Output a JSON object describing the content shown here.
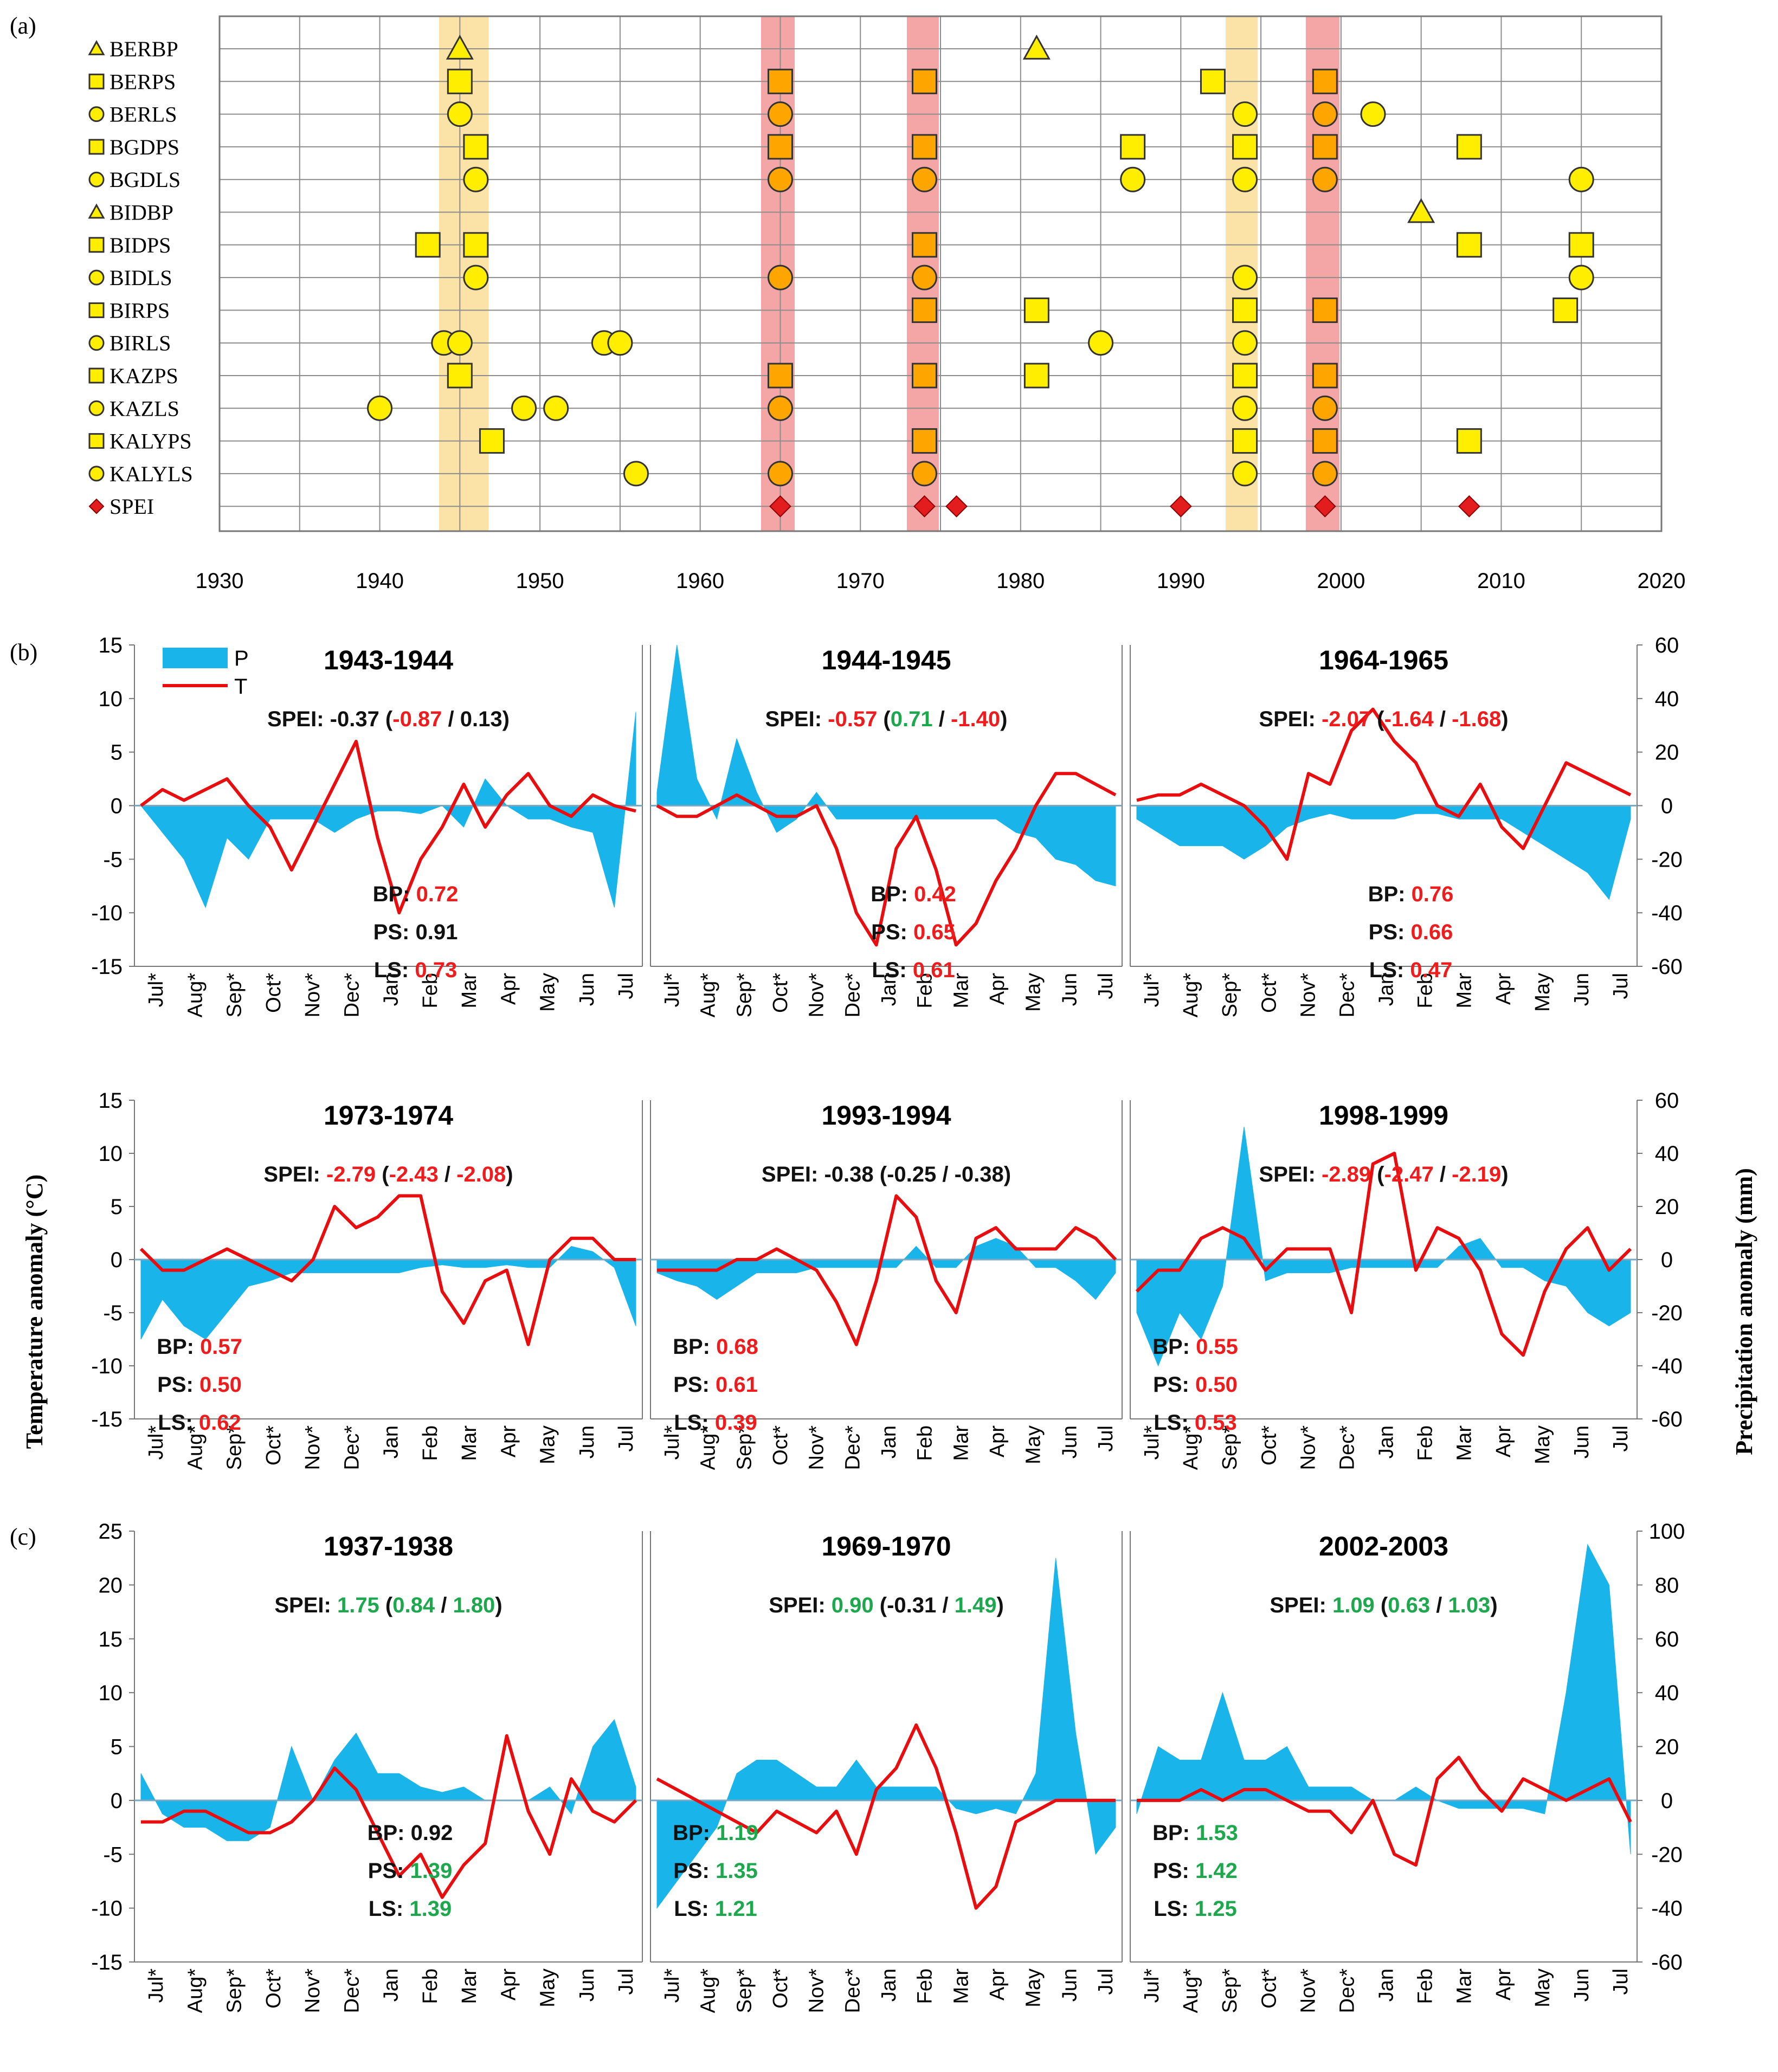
{
  "colors": {
    "precip": "#18b4ea",
    "temp": "#e80e10",
    "red": "#ee1c1c",
    "green": "#1ea84e",
    "black": "#111111",
    "yellow": "#ffee00",
    "orange": "#ffa500",
    "band_red": "#f4a6a6",
    "band_yellow": "#fbe3a8",
    "spei_marker": "#e31d1d"
  },
  "chart_data": [
    {
      "type": "scatter",
      "panel": "(a)",
      "x_ticks": [
        "1930",
        "1940",
        "1950",
        "1960",
        "1970",
        "1980",
        "1990",
        "2000",
        "2010",
        "2020"
      ],
      "xlim": [
        1930,
        2020
      ],
      "bands": [
        {
          "from": 1943.7,
          "to": 1946.8,
          "color": "yellow"
        },
        {
          "from": 1963.8,
          "to": 1965.9,
          "color": "red"
        },
        {
          "from": 1972.9,
          "to": 1974.9,
          "color": "red"
        },
        {
          "from": 1992.8,
          "to": 1994.8,
          "color": "yellow"
        },
        {
          "from": 1997.8,
          "to": 1999.9,
          "color": "red"
        }
      ],
      "highlight_years": [
        1965,
        1974,
        1999
      ],
      "rows": [
        {
          "label": "BERBP",
          "shape": "triangle",
          "years": [
            1945,
            1981
          ]
        },
        {
          "label": "BERPS",
          "shape": "square",
          "years": [
            1945,
            1965,
            1974,
            1992,
            1999
          ]
        },
        {
          "label": "BERLS",
          "shape": "circle",
          "years": [
            1945,
            1965,
            1994,
            1999,
            2002
          ]
        },
        {
          "label": "BGDPS",
          "shape": "square",
          "years": [
            1946,
            1965,
            1974,
            1987,
            1994,
            1999,
            2008
          ]
        },
        {
          "label": "BGDLS",
          "shape": "circle",
          "years": [
            1946,
            1965,
            1974,
            1987,
            1994,
            1999,
            2015
          ]
        },
        {
          "label": "BIDBP",
          "shape": "triangle",
          "years": [
            2005
          ]
        },
        {
          "label": "BIDPS",
          "shape": "square",
          "years": [
            1943,
            1946,
            1974,
            2008,
            2015
          ]
        },
        {
          "label": "BIDLS",
          "shape": "circle",
          "years": [
            1946,
            1965,
            1974,
            1994,
            2015
          ]
        },
        {
          "label": "BIRPS",
          "shape": "square",
          "years": [
            1974,
            1981,
            1994,
            1999,
            2014
          ]
        },
        {
          "label": "BIRLS",
          "shape": "circle",
          "years": [
            1944,
            1945,
            1954,
            1955,
            1985,
            1994
          ]
        },
        {
          "label": "KAZPS",
          "shape": "square",
          "years": [
            1945,
            1965,
            1974,
            1981,
            1994,
            1999
          ]
        },
        {
          "label": "KAZLS",
          "shape": "circle",
          "years": [
            1940,
            1949,
            1951,
            1965,
            1994,
            1999
          ]
        },
        {
          "label": "KALYPS",
          "shape": "square",
          "years": [
            1947,
            1974,
            1994,
            1999,
            2008
          ]
        },
        {
          "label": "KALYLS",
          "shape": "circle",
          "years": [
            1956,
            1965,
            1974,
            1994,
            1999
          ]
        },
        {
          "label": "SPEI",
          "shape": "diamond",
          "years": [
            1965,
            1974,
            1976,
            1990,
            1999,
            2008
          ]
        }
      ]
    },
    {
      "type": "line+area",
      "panels_b_c": true,
      "months": [
        "Jul*",
        "Aug*",
        "Sep*",
        "Oct*",
        "Nov*",
        "Dec*",
        "Jan",
        "Feb",
        "Mar",
        "Apr",
        "May",
        "Jun",
        "Jul"
      ],
      "left_axis": {
        "title": "Temperature anomaly (°C)",
        "ticks_b": [
          "15",
          "10",
          "5",
          "0",
          "-5",
          "-10",
          "-15"
        ],
        "ticks_c": [
          "25",
          "20",
          "15",
          "10",
          "5",
          "0",
          "-5",
          "-10",
          "-15"
        ]
      },
      "right_axis": {
        "title": "Precipitation anomaly (mm)",
        "ticks_b": [
          "60",
          "40",
          "20",
          "0",
          "-20",
          "-40",
          "-60"
        ],
        "ticks_c": [
          "100",
          "80",
          "60",
          "40",
          "20",
          "0",
          "-20",
          "-40",
          "-60"
        ]
      },
      "legend": {
        "p": "P",
        "t": "T"
      },
      "panels": [
        {
          "title": "1943-1944",
          "spei": "-0.37",
          "spei_a": "-0.87",
          "spei_b": "0.13",
          "c": [
            "black",
            "red",
            "black"
          ],
          "bp": "0.72",
          "ps": "0.91",
          "ls": "0.73",
          "sc": [
            "red",
            "black",
            "red"
          ],
          "temp": [
            0,
            1.5,
            0.5,
            1.5,
            2.5,
            0,
            -2,
            -6,
            -2,
            2,
            6,
            -3,
            -10,
            -5,
            -2,
            2,
            -2,
            1,
            3,
            0,
            -1,
            1,
            0,
            -0.5
          ],
          "precip": [
            0,
            -10,
            -20,
            -38,
            -12,
            -20,
            -5,
            -5,
            -5,
            -10,
            -5,
            -2,
            -2,
            -3,
            0,
            -8,
            10,
            0,
            -5,
            -5,
            -8,
            -10,
            -38,
            35
          ]
        },
        {
          "title": "1944-1945",
          "spei": "-0.57",
          "spei_a": "0.71",
          "spei_b": "-1.40",
          "c": [
            "red",
            "green",
            "red"
          ],
          "bp": "0.42",
          "ps": "0.65",
          "ls": "0.61",
          "sc": [
            "red",
            "red",
            "red"
          ],
          "temp": [
            0,
            -1,
            -1,
            0,
            1,
            0,
            -1,
            -1,
            0,
            -4,
            -10,
            -13,
            -4,
            -1,
            -6,
            -13,
            -11,
            -7,
            -4,
            0,
            3,
            3,
            2,
            1
          ],
          "precip": [
            5,
            60,
            10,
            -5,
            25,
            5,
            -10,
            -5,
            5,
            -5,
            -5,
            -5,
            -5,
            -5,
            -5,
            -5,
            -5,
            -5,
            -10,
            -12,
            -20,
            -22,
            -28,
            -30
          ]
        },
        {
          "title": "1964-1965",
          "spei": "-2.07",
          "spei_a": "-1.64",
          "spei_b": "-1.68",
          "c": [
            "red",
            "red",
            "red"
          ],
          "bp": "0.76",
          "ps": "0.66",
          "ls": "0.47",
          "sc": [
            "red",
            "red",
            "red"
          ],
          "temp": [
            0.5,
            1,
            1,
            2,
            1,
            0,
            -2,
            -5,
            3,
            2,
            7,
            9,
            6,
            4,
            0,
            -1,
            2,
            -2,
            -4,
            0,
            4,
            3,
            2,
            1
          ],
          "precip": [
            -5,
            -10,
            -15,
            -15,
            -15,
            -20,
            -15,
            -8,
            -5,
            -3,
            -5,
            -5,
            -5,
            -3,
            -3,
            -5,
            -5,
            -5,
            -10,
            -15,
            -20,
            -25,
            -35,
            -5
          ]
        },
        {
          "title": "1973-1974",
          "spei": "-2.79",
          "spei_a": "-2.43",
          "spei_b": "-2.08",
          "c": [
            "red",
            "red",
            "red"
          ],
          "bp": "0.57",
          "ps": "0.50",
          "ls": "0.62",
          "sc": [
            "red",
            "red",
            "red"
          ],
          "temp": [
            1,
            -1,
            -1,
            0,
            1,
            0,
            -1,
            -2,
            0,
            5,
            3,
            4,
            6,
            6,
            -3,
            -6,
            -2,
            -1,
            -8,
            0,
            2,
            2,
            0,
            0
          ],
          "precip": [
            -30,
            -15,
            -25,
            -30,
            -20,
            -10,
            -8,
            -5,
            -5,
            -5,
            -5,
            -5,
            -5,
            -3,
            -2,
            -3,
            -3,
            -2,
            -3,
            -3,
            5,
            3,
            -3,
            -25
          ]
        },
        {
          "title": "1993-1994",
          "spei": "-0.38",
          "spei_a": "-0.25",
          "spei_b": "-0.38",
          "c": [
            "black",
            "black",
            "black"
          ],
          "bp": "0.68",
          "ps": "0.61",
          "ls": "0.39",
          "sc": [
            "red",
            "red",
            "red"
          ],
          "temp": [
            -1,
            -1,
            -1,
            -1,
            0,
            0,
            1,
            0,
            -1,
            -4,
            -8,
            -2,
            6,
            4,
            -2,
            -5,
            2,
            3,
            1,
            1,
            1,
            3,
            2,
            0
          ],
          "precip": [
            -5,
            -8,
            -10,
            -15,
            -10,
            -5,
            -5,
            -5,
            -3,
            -3,
            -3,
            -3,
            -3,
            5,
            -3,
            -3,
            5,
            8,
            5,
            -3,
            -3,
            -8,
            -15,
            -5
          ]
        },
        {
          "title": "1998-1999",
          "spei": "-2.89",
          "spei_a": "-2.47",
          "spei_b": "-2.19",
          "c": [
            "red",
            "red",
            "red"
          ],
          "bp": "0.55",
          "ps": "0.50",
          "ls": "0.53",
          "sc": [
            "red",
            "red",
            "red"
          ],
          "temp": [
            -3,
            -1,
            -1,
            2,
            3,
            2,
            -1,
            1,
            1,
            1,
            -5,
            9,
            10,
            -1,
            3,
            2,
            -1,
            -7,
            -9,
            -3,
            1,
            3,
            -1,
            1
          ],
          "precip": [
            -20,
            -40,
            -20,
            -30,
            -10,
            50,
            -8,
            -5,
            -5,
            -5,
            -3,
            -3,
            -3,
            -3,
            -3,
            5,
            8,
            -3,
            -3,
            -8,
            -10,
            -20,
            -25,
            -20
          ]
        },
        {
          "title": "1937-1938",
          "spei": "1.75",
          "spei_a": "0.84",
          "spei_b": "1.80",
          "c": [
            "green",
            "green",
            "green"
          ],
          "bp": "0.92",
          "ps": "1.39",
          "ls": "1.39",
          "sc": [
            "black",
            "green",
            "green"
          ],
          "temp": [
            -2,
            -2,
            -1,
            -1,
            -2,
            -3,
            -3,
            -2,
            0,
            3,
            1,
            -3,
            -7,
            -5,
            -9,
            -6,
            -4,
            6,
            -1,
            -5,
            2,
            -1,
            -2,
            0
          ],
          "precip": [
            10,
            -5,
            -10,
            -10,
            -15,
            -15,
            -10,
            20,
            0,
            15,
            25,
            10,
            10,
            5,
            3,
            5,
            0,
            0,
            0,
            5,
            -5,
            20,
            30,
            5
          ]
        },
        {
          "title": "1969-1970",
          "spei": "0.90",
          "spei_a": "-0.31",
          "spei_b": "1.49",
          "c": [
            "green",
            "black",
            "green"
          ],
          "bp": "1.19",
          "ps": "1.35",
          "ls": "1.21",
          "sc": [
            "green",
            "green",
            "green"
          ],
          "temp": [
            2,
            1,
            0,
            -1,
            -2,
            -3,
            -1,
            -2,
            -3,
            -1,
            -5,
            1,
            3,
            7,
            3,
            -3,
            -10,
            -8,
            -2,
            -1,
            0,
            0,
            0,
            0
          ],
          "precip": [
            -40,
            -30,
            -20,
            -10,
            10,
            15,
            15,
            10,
            5,
            5,
            15,
            5,
            5,
            5,
            5,
            -3,
            -5,
            -3,
            -5,
            10,
            90,
            25,
            -20,
            -10
          ]
        },
        {
          "title": "2002-2003",
          "spei": "1.09",
          "spei_a": "0.63",
          "spei_b": "1.03",
          "c": [
            "green",
            "green",
            "green"
          ],
          "bp": "1.53",
          "ps": "1.42",
          "ls": "1.25",
          "sc": [
            "green",
            "green",
            "green"
          ],
          "temp": [
            0,
            0,
            0,
            1,
            0,
            1,
            1,
            0,
            -1,
            -1,
            -3,
            0,
            -5,
            -6,
            2,
            4,
            1,
            -1,
            2,
            1,
            0,
            1,
            2,
            -2
          ],
          "precip": [
            -5,
            20,
            15,
            15,
            40,
            15,
            15,
            20,
            5,
            5,
            5,
            0,
            0,
            5,
            0,
            -3,
            -3,
            -3,
            -3,
            -5,
            40,
            95,
            80,
            -20
          ]
        }
      ]
    }
  ],
  "labels": {
    "a": "(a)",
    "b": "(b)",
    "c": "(c)",
    "spei_prefix": "SPEI:",
    "bp": "BP:",
    "ps": "PS:",
    "ls": "LS:"
  }
}
